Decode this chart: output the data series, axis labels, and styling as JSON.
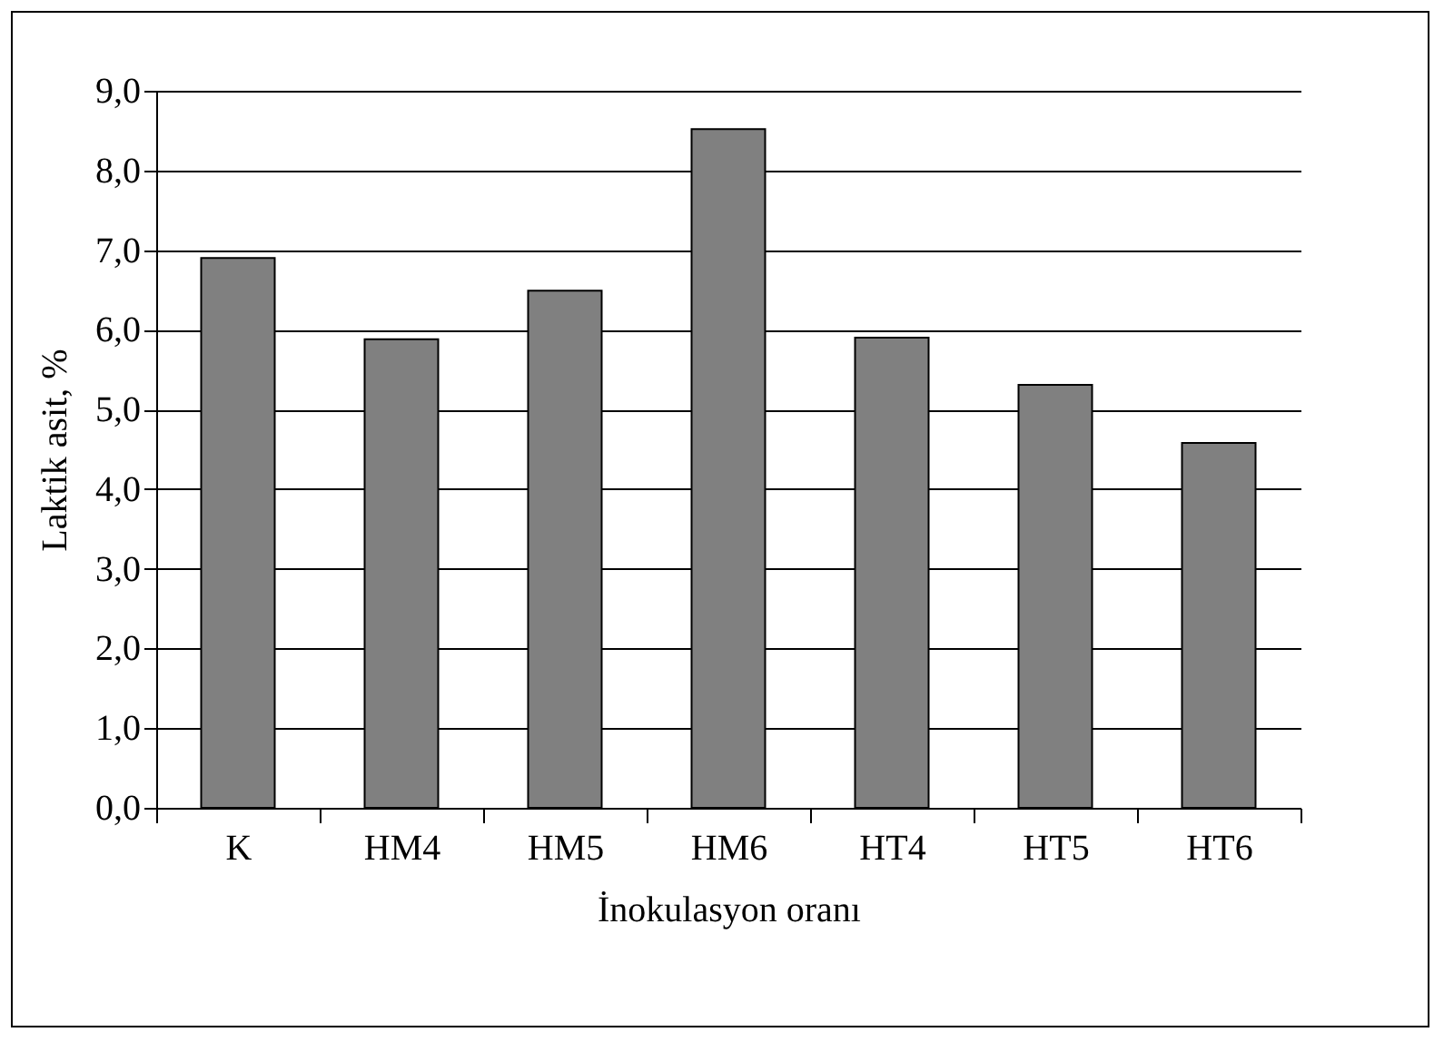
{
  "chart_data": {
    "type": "bar",
    "xlabel": "İnokulasyon oranı",
    "ylabel": "Laktik asit, %",
    "categories": [
      "K",
      "HM4",
      "HM5",
      "HM6",
      "HT4",
      "HT5",
      "HT6"
    ],
    "values": [
      6.9,
      5.88,
      6.49,
      8.52,
      5.9,
      5.31,
      4.58
    ],
    "color": "#808080",
    "ylim": [
      0,
      9
    ],
    "yticks": [
      {
        "value": 0,
        "label": "0,0"
      },
      {
        "value": 1,
        "label": "1,0"
      },
      {
        "value": 2,
        "label": "2,0"
      },
      {
        "value": 3,
        "label": "3,0"
      },
      {
        "value": 4,
        "label": "4,0"
      },
      {
        "value": 5,
        "label": "5,0"
      },
      {
        "value": 6,
        "label": "6,0"
      },
      {
        "value": 7,
        "label": "7,0"
      },
      {
        "value": 8,
        "label": "8,0"
      },
      {
        "value": 9,
        "label": "9,0"
      }
    ],
    "grid": "y"
  }
}
